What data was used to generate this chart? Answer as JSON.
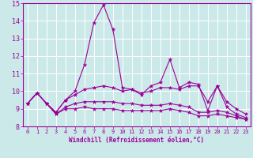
{
  "xlabel": "Windchill (Refroidissement éolien,°C)",
  "xlim": [
    -0.5,
    23.5
  ],
  "ylim": [
    8,
    15
  ],
  "xticks": [
    0,
    1,
    2,
    3,
    4,
    5,
    6,
    7,
    8,
    9,
    10,
    11,
    12,
    13,
    14,
    15,
    16,
    17,
    18,
    19,
    20,
    21,
    22,
    23
  ],
  "yticks": [
    8,
    9,
    10,
    11,
    12,
    13,
    14,
    15
  ],
  "bg_color": "#cce9e9",
  "line_color": "#990099",
  "grid_color": "#aad4d4",
  "line1": [
    9.3,
    9.9,
    9.3,
    8.8,
    9.5,
    10.0,
    11.5,
    13.9,
    14.9,
    13.5,
    10.2,
    10.1,
    9.8,
    10.3,
    10.5,
    11.8,
    10.2,
    10.5,
    10.4,
    8.9,
    10.3,
    9.1,
    8.7,
    8.5
  ],
  "line2": [
    9.3,
    9.9,
    9.3,
    8.8,
    9.5,
    9.8,
    10.1,
    10.2,
    10.3,
    10.2,
    10.0,
    10.1,
    9.9,
    10.0,
    10.2,
    10.2,
    10.1,
    10.3,
    10.3,
    9.4,
    10.3,
    9.4,
    9.0,
    8.7
  ],
  "line3": [
    9.3,
    9.9,
    9.3,
    8.7,
    9.1,
    9.3,
    9.4,
    9.4,
    9.4,
    9.4,
    9.3,
    9.3,
    9.2,
    9.2,
    9.2,
    9.3,
    9.2,
    9.1,
    8.8,
    8.8,
    8.9,
    8.8,
    8.6,
    8.4
  ],
  "line4": [
    9.3,
    9.9,
    9.3,
    8.7,
    9.0,
    9.0,
    9.1,
    9.0,
    9.0,
    9.0,
    8.9,
    8.9,
    8.9,
    8.9,
    8.9,
    9.0,
    8.9,
    8.8,
    8.6,
    8.6,
    8.7,
    8.6,
    8.5,
    8.4
  ]
}
